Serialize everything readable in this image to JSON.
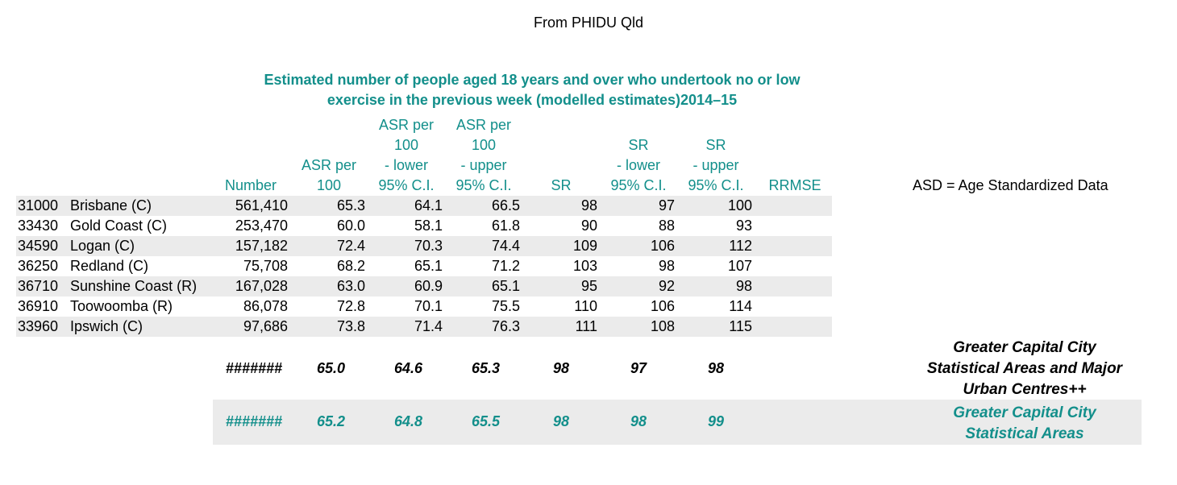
{
  "source": "From PHIDU Qld",
  "title_line1": "Estimated number of people aged 18 years and over who undertook no or low",
  "title_line2": "exercise in the previous week (modelled estimates)2014–15",
  "headers": {
    "number": [
      "Number"
    ],
    "asr": [
      "ASR per",
      "100"
    ],
    "asr_lower": [
      "ASR per",
      "100",
      "- lower",
      "95% C.I."
    ],
    "asr_upper": [
      "ASR per",
      "100",
      "- upper",
      "95% C.I."
    ],
    "sr": [
      "SR"
    ],
    "sr_lower": [
      "SR",
      "- lower",
      "95% C.I."
    ],
    "sr_upper": [
      "SR",
      "- upper",
      "95% C.I."
    ],
    "rrmse": [
      "RRMSE"
    ]
  },
  "asd_note": "ASD = Age Standardized Data",
  "rows": [
    {
      "code": "31000",
      "name": "Brisbane (C)",
      "number": "561,410",
      "asr": "65.3",
      "asr_lower": "64.1",
      "asr_upper": "66.5",
      "sr": "98",
      "sr_lower": "97",
      "sr_upper": "100"
    },
    {
      "code": "33430",
      "name": "Gold Coast (C)",
      "number": "253,470",
      "asr": "60.0",
      "asr_lower": "58.1",
      "asr_upper": "61.8",
      "sr": "90",
      "sr_lower": "88",
      "sr_upper": "93"
    },
    {
      "code": "34590",
      "name": "Logan (C)",
      "number": "157,182",
      "asr": "72.4",
      "asr_lower": "70.3",
      "asr_upper": "74.4",
      "sr": "109",
      "sr_lower": "106",
      "sr_upper": "112"
    },
    {
      "code": "36250",
      "name": "Redland (C)",
      "number": "75,708",
      "asr": "68.2",
      "asr_lower": "65.1",
      "asr_upper": "71.2",
      "sr": "103",
      "sr_lower": "98",
      "sr_upper": "107"
    },
    {
      "code": "36710",
      "name": "Sunshine Coast (R)",
      "number": "167,028",
      "asr": "63.0",
      "asr_lower": "60.9",
      "asr_upper": "65.1",
      "sr": "95",
      "sr_lower": "92",
      "sr_upper": "98"
    },
    {
      "code": "36910",
      "name": "Toowoomba (R)",
      "number": "86,078",
      "asr": "72.8",
      "asr_lower": "70.1",
      "asr_upper": "75.5",
      "sr": "110",
      "sr_lower": "106",
      "sr_upper": "114"
    },
    {
      "code": "33960",
      "name": "Ipswich (C)",
      "number": "97,686",
      "asr": "73.8",
      "asr_lower": "71.4",
      "asr_upper": "76.3",
      "sr": "111",
      "sr_lower": "108",
      "sr_upper": "115"
    }
  ],
  "summary1": {
    "number": "#######",
    "asr": "65.0",
    "asr_lower": "64.6",
    "asr_upper": "65.3",
    "sr": "98",
    "sr_lower": "97",
    "sr_upper": "98",
    "label": [
      "Greater Capital City",
      "Statistical Areas and Major",
      "Urban Centres++"
    ]
  },
  "summary2": {
    "number": "#######",
    "asr": "65.2",
    "asr_lower": "64.8",
    "asr_upper": "65.5",
    "sr": "98",
    "sr_lower": "98",
    "sr_upper": "99",
    "label": [
      "Greater Capital City",
      "Statistical Areas"
    ]
  }
}
